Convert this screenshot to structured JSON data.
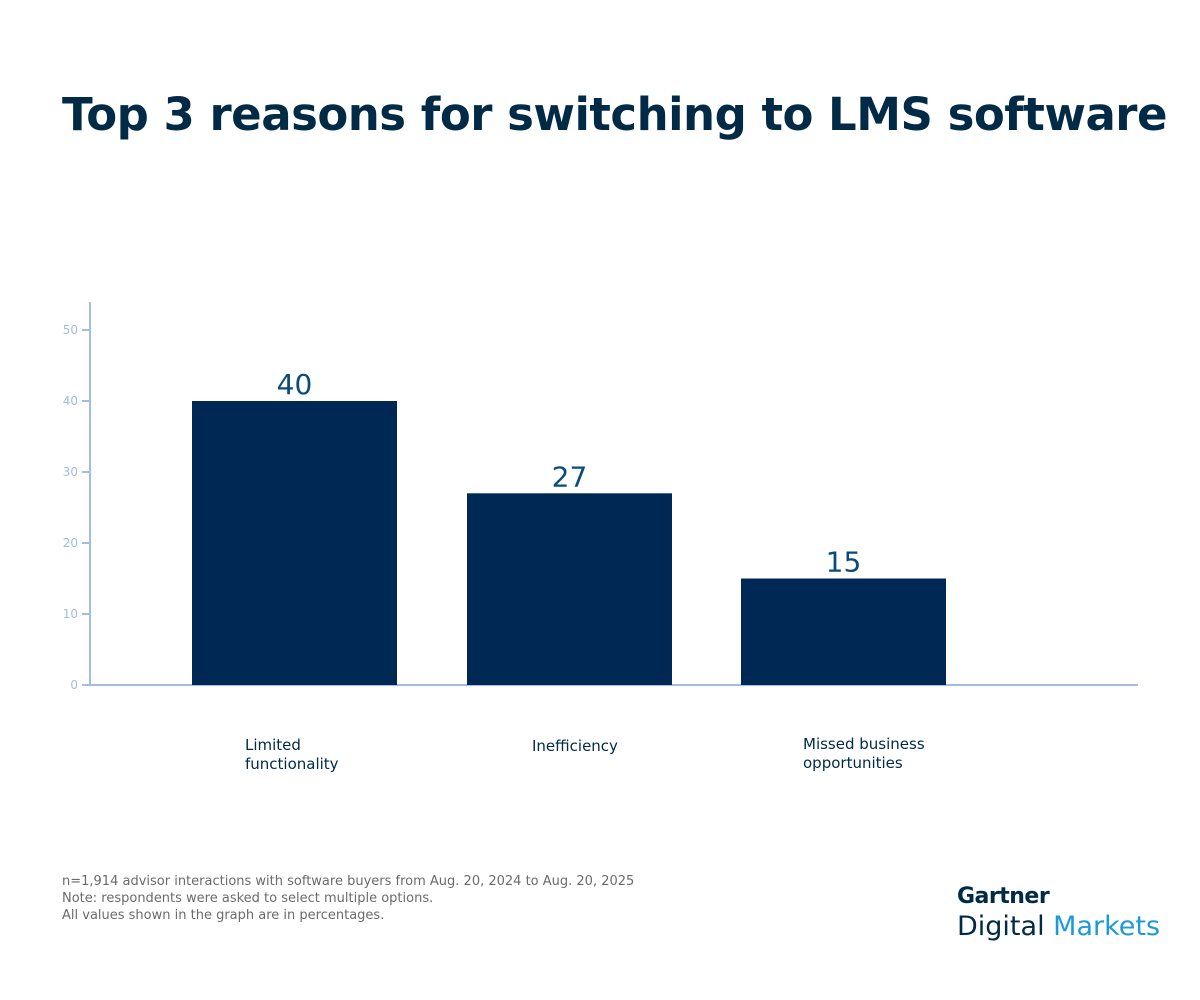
{
  "chart_data": {
    "type": "bar",
    "title": "Top 3 reasons for switching to LMS software",
    "categories": [
      "Limited\nfunctionality",
      "Inefficiency",
      "Missed business\nopportunities"
    ],
    "values": [
      40,
      27,
      15
    ],
    "data_labels": [
      "40",
      "27",
      "15"
    ],
    "ylim": [
      0,
      50
    ],
    "yticks": [
      0,
      10,
      20,
      30,
      40,
      50
    ],
    "xlabel": "",
    "ylabel": "",
    "grid": false,
    "colors": {
      "bar": "#002855",
      "axis": "#a3bde0",
      "data_label": "#0b4a7d",
      "title": "#002a45"
    }
  },
  "notes": [
    "n=1,914 advisor interactions with software buyers from Aug. 20, 2024 to Aug. 20, 2025",
    "Note: respondents were asked to select multiple options.",
    "All values shown in the graph are in percentages."
  ],
  "logo": {
    "brand": "Gartner",
    "line2a": "Digital",
    "line2b": "Markets"
  }
}
